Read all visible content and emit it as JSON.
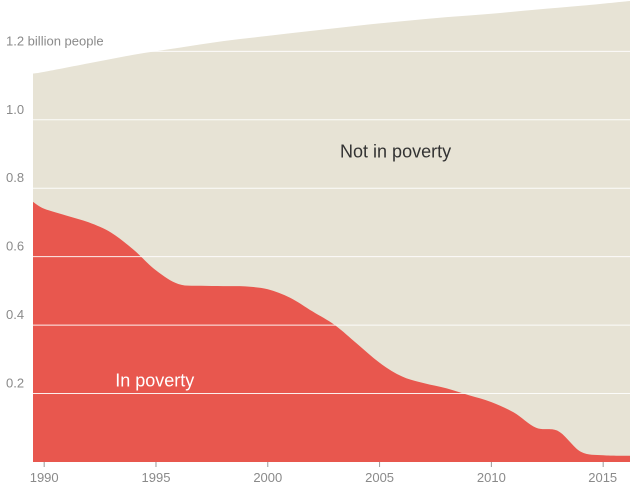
{
  "chart_data": {
    "type": "area",
    "x_ticks": [
      "1990",
      "1995",
      "2000",
      "2005",
      "2010",
      "2015"
    ],
    "y_ticks": [
      {
        "value": 0.2,
        "label": "0.2"
      },
      {
        "value": 0.4,
        "label": "0.4"
      },
      {
        "value": 0.6,
        "label": "0.6"
      },
      {
        "value": 0.8,
        "label": "0.8"
      },
      {
        "value": 1.0,
        "label": "1.0"
      },
      {
        "value": 1.2,
        "label": "1.2 billion people"
      }
    ],
    "xlim": [
      1989.5,
      2016.2
    ],
    "ylim": [
      0,
      1.35
    ],
    "grid": true,
    "series": [
      {
        "name": "In poverty",
        "color": "#e8574e",
        "x": [
          1989.5,
          1990,
          1991,
          1992,
          1993,
          1994,
          1995,
          1996,
          1997,
          1998,
          1999,
          2000,
          2001,
          2002,
          2003,
          2004,
          2005,
          2006,
          2007,
          2008,
          2009,
          2010,
          2011,
          2012,
          2013,
          2014,
          2015,
          2016.2
        ],
        "values": [
          0.76,
          0.74,
          0.72,
          0.7,
          0.67,
          0.62,
          0.56,
          0.52,
          0.515,
          0.514,
          0.513,
          0.505,
          0.48,
          0.44,
          0.4,
          0.345,
          0.29,
          0.25,
          0.23,
          0.215,
          0.195,
          0.175,
          0.145,
          0.1,
          0.09,
          0.03,
          0.02,
          0.018
        ]
      },
      {
        "name": "Not in poverty",
        "color": "#e7e3d5",
        "x": [
          1989.5,
          1990,
          1992,
          1994,
          1996,
          1998,
          2000,
          2002,
          2004,
          2006,
          2008,
          2010,
          2012,
          2014,
          2016.2
        ],
        "total": [
          1.135,
          1.14,
          1.165,
          1.19,
          1.21,
          1.23,
          1.245,
          1.26,
          1.275,
          1.288,
          1.3,
          1.31,
          1.322,
          1.333,
          1.347
        ]
      }
    ]
  }
}
